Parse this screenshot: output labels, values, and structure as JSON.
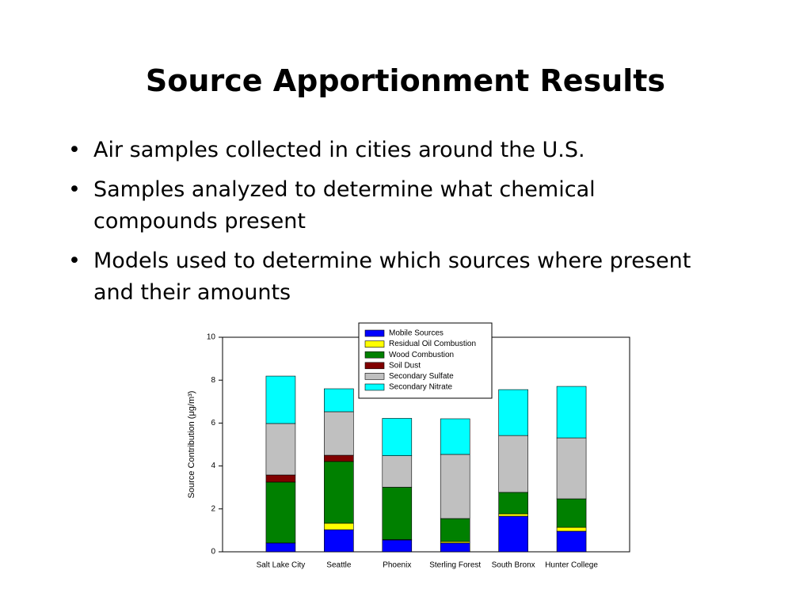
{
  "slide": {
    "title": "Source Apportionment Results",
    "bullets": [
      "Air samples collected in cities around the U.S.",
      "Samples analyzed to determine what chemical compounds present",
      "Models used to determine which sources where present and their amounts"
    ]
  },
  "chart_data": {
    "type": "stacked_bar",
    "y_label": "Source Contribution (μg/m³)",
    "categories": [
      "Salt Lake City",
      "Seattle",
      "Phoenix",
      "Sterling Forest",
      "South Bronx",
      "Hunter College"
    ],
    "series": [
      {
        "name": "Mobile Sources",
        "color": "#0000ff",
        "values": [
          0.41,
          1.03,
          0.55,
          0.41,
          1.66,
          0.96
        ]
      },
      {
        "name": "Residual Oil Combustion",
        "color": "#ffff00",
        "values": [
          0,
          0.3,
          0.02,
          0.07,
          0.11,
          0.18
        ]
      },
      {
        "name": "Wood Combustion",
        "color": "#008000",
        "values": [
          2.84,
          2.88,
          2.44,
          1.07,
          1.0,
          1.33
        ]
      },
      {
        "name": "Soil Dust",
        "color": "#800000",
        "values": [
          0.33,
          0.29,
          0,
          0,
          0,
          0
        ]
      },
      {
        "name": "Secondary Sulfate",
        "color": "#c0c0c0",
        "values": [
          2.4,
          2.03,
          1.47,
          2.99,
          2.65,
          2.84
        ]
      },
      {
        "name": "Secondary Nitrate",
        "color": "#00ffff",
        "values": [
          2.21,
          1.07,
          1.74,
          1.66,
          2.14,
          2.4
        ]
      }
    ],
    "ylim": [
      0,
      10
    ],
    "yticks": [
      0,
      2,
      4,
      6,
      8,
      10
    ]
  }
}
